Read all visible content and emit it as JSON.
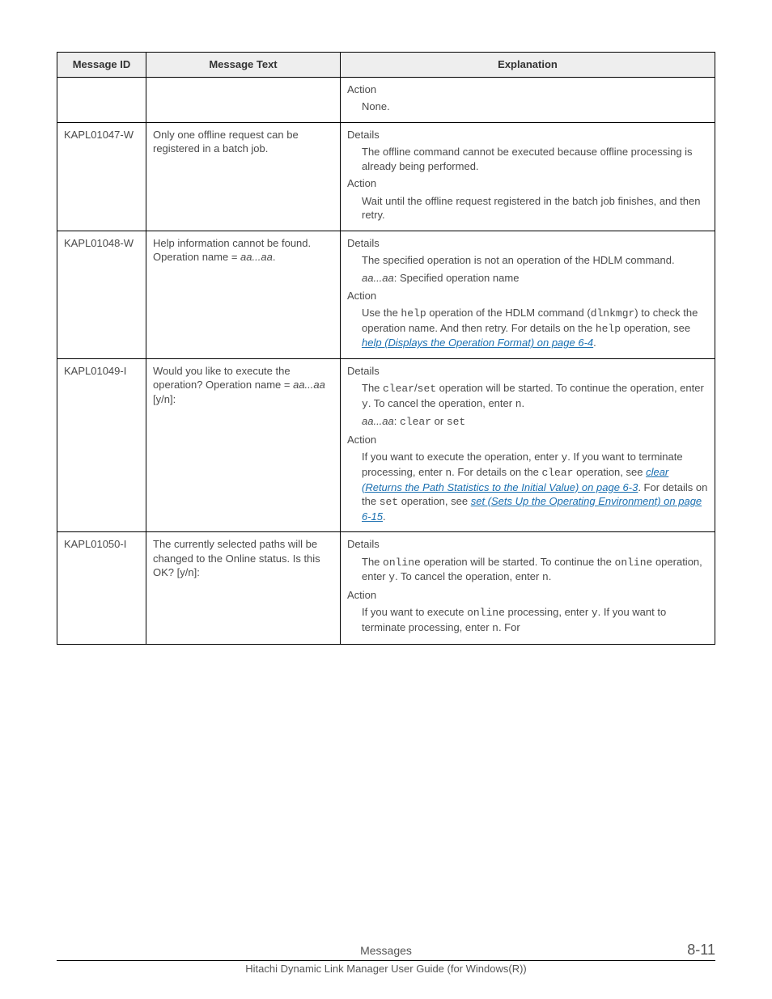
{
  "headers": {
    "id": "Message ID",
    "text": "Message Text",
    "exp": "Explanation"
  },
  "labels": {
    "details": "Details",
    "action": "Action",
    "none": "None."
  },
  "rows": {
    "r0": {
      "id": "",
      "text": ""
    },
    "r1": {
      "id": "KAPL01047-W",
      "text": "Only one offline request can be registered in a batch job.",
      "details": "The offline command cannot be executed because offline processing is already being performed.",
      "action": "Wait until the offline request registered in the batch job finishes, and then retry."
    },
    "r2": {
      "id": "KAPL01048-W",
      "text_pre": "Help information cannot be found. Operation name = ",
      "text_var": "aa...aa",
      "details1": "The specified operation is not an operation of the HDLM command.",
      "details2_var": "aa...aa",
      "details2_rest": ": Specified operation name",
      "action_a": "Use the ",
      "action_help": "help",
      "action_b": " operation of the HDLM command (",
      "action_dlnk": "dlnkmgr",
      "action_c": ") to check the operation name. And then retry. For details on the ",
      "action_help2": "help",
      "action_d": " operation, see ",
      "action_link": "help (Displays the Operation Format) on page 6-4"
    },
    "r3": {
      "id": "KAPL01049-I",
      "text_pre": "Would you like to execute the operation? Operation name = ",
      "text_var": "aa...aa",
      "text_suf": " [y/n]:",
      "details_a": "The ",
      "details_clear": "clear",
      "details_slash": "/",
      "details_set": "set",
      "details_b": " operation will be started. To continue the operation, enter ",
      "details_y": "y",
      "details_c": ". To cancel the operation, enter ",
      "details_n": "n",
      "details_d": ".",
      "details2_var": "aa...aa",
      "details2_mid": ": ",
      "details2_clear": "clear",
      "details2_or": " or ",
      "details2_set": "set",
      "action_a": "If you want to execute the operation, enter ",
      "action_y": "y",
      "action_b": ". If you want to terminate processing, enter ",
      "action_n": "n",
      "action_c": ". For details on the ",
      "action_clear": "clear",
      "action_d": " operation, see ",
      "action_link1": "clear (Returns the Path Statistics to the Initial Value) on page 6-3",
      "action_e": ". For details on the ",
      "action_set": "set",
      "action_f": " operation, see ",
      "action_link2": "set (Sets Up the Operating Environment) on page 6-15"
    },
    "r4": {
      "id": "KAPL01050-I",
      "text": "The currently selected paths will be changed to the Online status. Is this OK? [y/n]:",
      "details_a": "The ",
      "details_online": "online",
      "details_b": " operation will be started. To continue the ",
      "details_online2": "online",
      "details_c": " operation, enter ",
      "details_y": "y",
      "details_d": ". To cancel the operation, enter ",
      "details_n": "n",
      "details_e": ".",
      "action_a": "If you want to execute ",
      "action_online": "online",
      "action_b": " processing, enter ",
      "action_y": "y",
      "action_c": ". If you want to terminate processing, enter ",
      "action_n": "n",
      "action_d": ". For"
    }
  },
  "footer": {
    "center": "Messages",
    "right": "8-11",
    "sub": "Hitachi Dynamic Link Manager User Guide (for Windows(R))"
  }
}
